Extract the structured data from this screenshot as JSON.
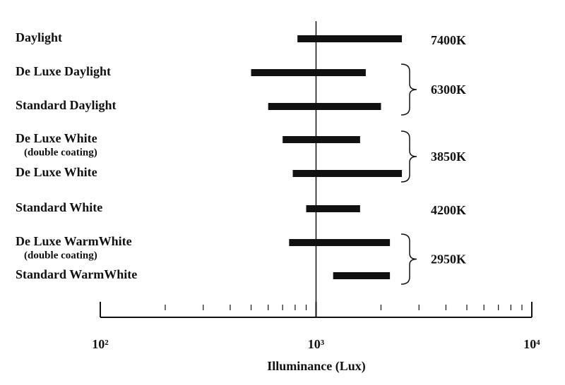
{
  "chart_data": {
    "type": "range",
    "x_label": "Illuminance (Lux)",
    "categories": [
      "Daylight",
      "De Luxe Daylight",
      "Standard Daylight",
      "De Luxe White",
      "De Luxe White",
      "Standard White",
      "De Luxe WarmWhite",
      "Standard WarmWhite"
    ],
    "sublabels": [
      null,
      null,
      null,
      "(double coating)",
      null,
      null,
      "(double coating)",
      null
    ],
    "low": [
      820,
      500,
      600,
      700,
      780,
      900,
      750,
      1200
    ],
    "high": [
      2500,
      1700,
      2000,
      1600,
      2500,
      1600,
      2200,
      2200
    ],
    "color": "#111111",
    "groups": [
      {
        "label": "7400K",
        "size": 1
      },
      {
        "label": "6300K",
        "size": 2
      },
      {
        "label": "3850K",
        "size": 2
      },
      {
        "label": "4200K",
        "size": 1
      },
      {
        "label": "2950K",
        "size": 2
      }
    ],
    "x_log": true,
    "xlim": [
      100,
      10000
    ],
    "xticks": [
      {
        "value": 100,
        "label": "10²"
      },
      {
        "value": 1000,
        "label": "10³"
      },
      {
        "value": 10000,
        "label": "10⁴"
      }
    ],
    "xticks_minor": [
      200,
      300,
      400,
      500,
      600,
      700,
      800,
      900,
      2000,
      3000,
      4000,
      5000,
      6000,
      7000,
      8000,
      9000
    ],
    "reference_line": 1000
  }
}
